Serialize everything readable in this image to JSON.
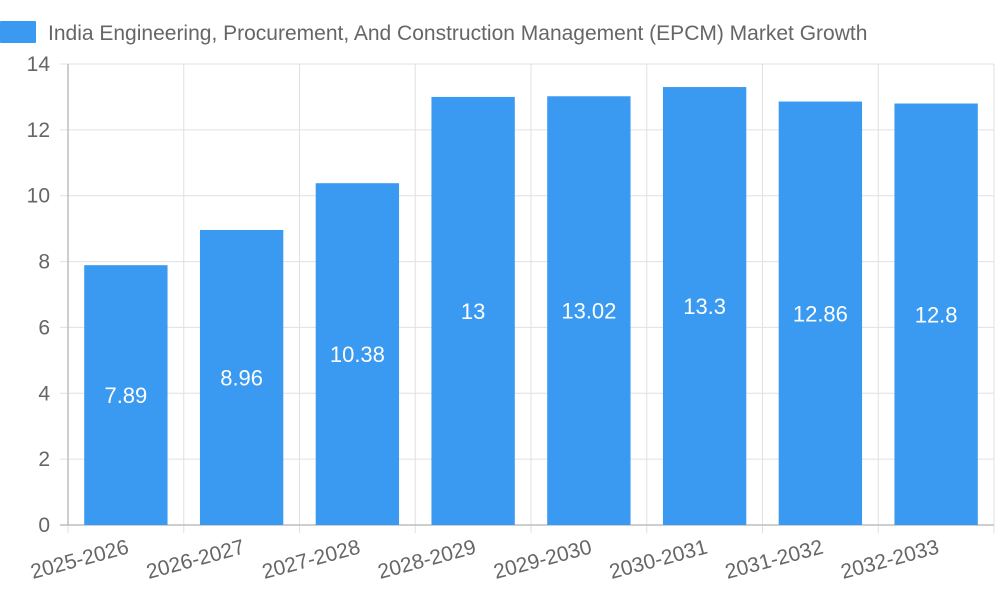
{
  "chart_data": {
    "type": "bar",
    "title": "",
    "xlabel": "",
    "ylabel": "",
    "categories": [
      "2025-2026",
      "2026-2027",
      "2027-2028",
      "2028-2029",
      "2029-2030",
      "2030-2031",
      "2031-2032",
      "2032-2033"
    ],
    "series": [
      {
        "name": "India Engineering, Procurement, And Construction Management (EPCM) Market Growth",
        "values": [
          7.89,
          8.96,
          10.38,
          13,
          13.02,
          13.3,
          12.86,
          12.8
        ],
        "color": "#3a99f0"
      }
    ],
    "ylim": [
      0,
      14
    ],
    "yticks": [
      0,
      2,
      4,
      6,
      8,
      10,
      12,
      14
    ],
    "grid": true,
    "legend_position": "top"
  },
  "colors": {
    "bar": "#3a99f0",
    "grid": "#e0e0e0",
    "axis": "#bdbdbd",
    "text": "#666666",
    "label": "#ffffff"
  }
}
